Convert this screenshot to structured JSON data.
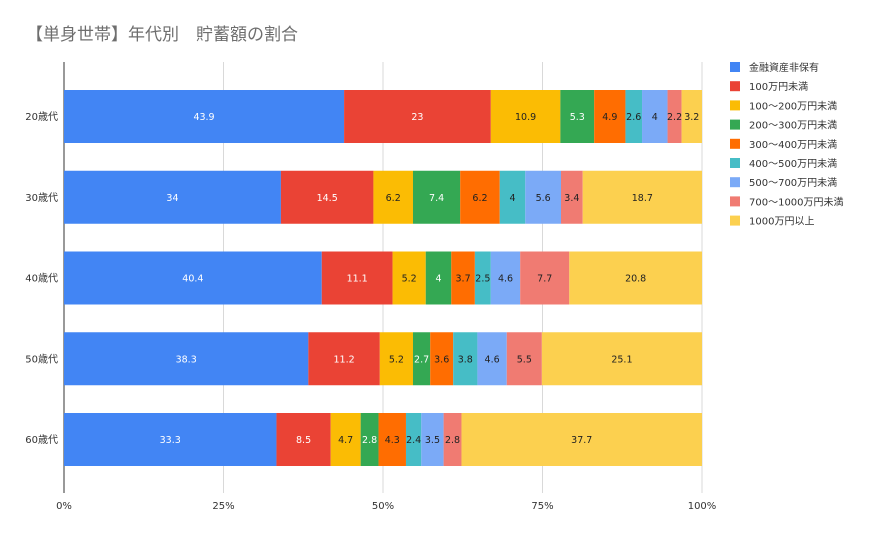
{
  "chart_data": {
    "type": "bar",
    "orientation": "horizontal",
    "stacked": "percent",
    "title": "【単身世帯】年代別　貯蓄額の割合",
    "categories": [
      "20歳代",
      "30歳代",
      "40歳代",
      "50歳代",
      "60歳代"
    ],
    "x_ticks": [
      "0%",
      "25%",
      "50%",
      "75%",
      "100%"
    ],
    "xlim": [
      0,
      100
    ],
    "grid": "vertical",
    "legend_position": "right",
    "series": [
      {
        "name": "金融資産非保有",
        "color": "#4285f4",
        "label_color": "#ffffff",
        "values": [
          43.9,
          34,
          40.4,
          38.3,
          33.3
        ]
      },
      {
        "name": "100万円未満",
        "color": "#ea4335",
        "label_color": "#ffffff",
        "values": [
          23,
          14.5,
          11.1,
          11.2,
          8.5
        ]
      },
      {
        "name": "100〜200万円未満",
        "color": "#fbbc04",
        "label_color": "#222222",
        "values": [
          10.9,
          6.2,
          5.2,
          5.2,
          4.7
        ]
      },
      {
        "name": "200〜300万円未満",
        "color": "#34a853",
        "label_color": "#ffffff",
        "values": [
          5.3,
          7.4,
          4,
          2.7,
          2.8
        ]
      },
      {
        "name": "300〜400万円未満",
        "color": "#ff6d01",
        "label_color": "#222222",
        "values": [
          4.9,
          6.2,
          3.7,
          3.6,
          4.3
        ]
      },
      {
        "name": "400〜500万円未満",
        "color": "#46bdc6",
        "label_color": "#222222",
        "values": [
          2.6,
          4,
          2.5,
          3.8,
          2.4
        ]
      },
      {
        "name": "500〜700万円未満",
        "color": "#7baaf7",
        "label_color": "#222222",
        "values": [
          4,
          5.6,
          4.6,
          4.6,
          3.5
        ]
      },
      {
        "name": "700〜1000万円未満",
        "color": "#f07b72",
        "label_color": "#222222",
        "values": [
          2.2,
          3.4,
          7.7,
          5.5,
          2.8
        ]
      },
      {
        "name": "1000万円以上",
        "color": "#fcd04f",
        "label_color": "#222222",
        "values": [
          3.2,
          18.7,
          20.8,
          25.1,
          37.7
        ]
      }
    ]
  }
}
